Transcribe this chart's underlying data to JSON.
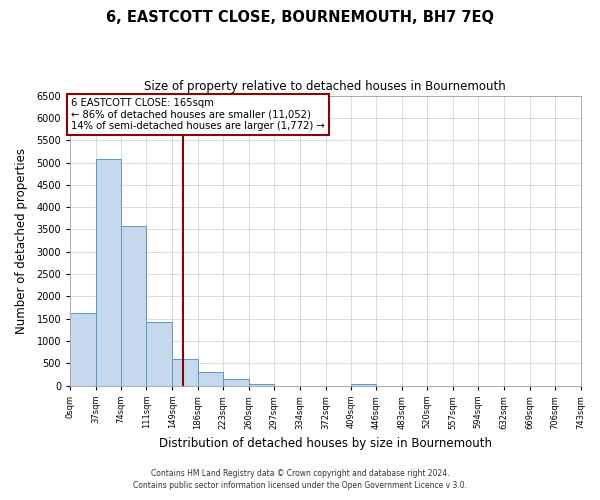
{
  "title": "6, EASTCOTT CLOSE, BOURNEMOUTH, BH7 7EQ",
  "subtitle": "Size of property relative to detached houses in Bournemouth",
  "xlabel": "Distribution of detached houses by size in Bournemouth",
  "ylabel": "Number of detached properties",
  "bar_edges": [
    0,
    37,
    74,
    111,
    149,
    186,
    223,
    260,
    297,
    334,
    372,
    409,
    446,
    483,
    520,
    557,
    594,
    632,
    669,
    706,
    743
  ],
  "bar_heights": [
    1630,
    5080,
    3580,
    1430,
    590,
    300,
    145,
    50,
    0,
    0,
    0,
    50,
    0,
    0,
    0,
    0,
    0,
    0,
    0,
    0
  ],
  "bar_color": "#c5d8ed",
  "bar_edgecolor": "#5a9ac5",
  "vline_x": 165,
  "vline_color": "#8b0000",
  "ylim": [
    0,
    6500
  ],
  "annotation_title": "6 EASTCOTT CLOSE: 165sqm",
  "annotation_line1": "← 86% of detached houses are smaller (11,052)",
  "annotation_line2": "14% of semi-detached houses are larger (1,772) →",
  "annotation_box_color": "#8b0000",
  "footnote1": "Contains HM Land Registry data © Crown copyright and database right 2024.",
  "footnote2": "Contains public sector information licensed under the Open Government Licence v 3.0.",
  "tick_labels": [
    "0sqm",
    "37sqm",
    "74sqm",
    "111sqm",
    "149sqm",
    "186sqm",
    "223sqm",
    "260sqm",
    "297sqm",
    "334sqm",
    "372sqm",
    "409sqm",
    "446sqm",
    "483sqm",
    "520sqm",
    "557sqm",
    "594sqm",
    "632sqm",
    "669sqm",
    "706sqm",
    "743sqm"
  ],
  "yticks": [
    0,
    500,
    1000,
    1500,
    2000,
    2500,
    3000,
    3500,
    4000,
    4500,
    5000,
    5500,
    6000,
    6500
  ],
  "background_color": "#ffffff",
  "grid_color": "#cccccc"
}
